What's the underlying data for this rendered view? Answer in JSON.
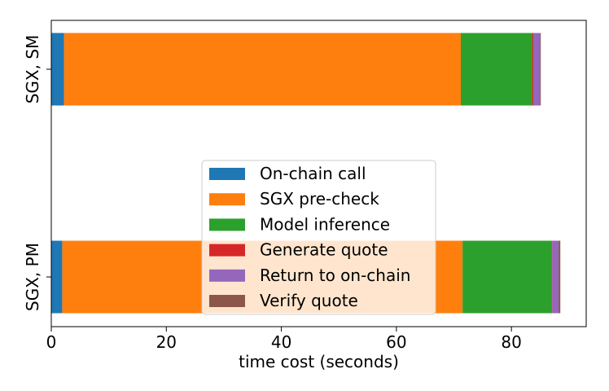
{
  "chart_data": {
    "type": "bar",
    "orientation": "horizontal",
    "stacked": true,
    "categories": [
      "SGX, PM",
      "SGX, SM"
    ],
    "series": [
      {
        "name": "On-chain call",
        "values": [
          1.9,
          2.2
        ],
        "color": "#1f77b4"
      },
      {
        "name": "SGX pre-check",
        "values": [
          69.6,
          69.0
        ],
        "color": "#ff7f0e"
      },
      {
        "name": "Model inference",
        "values": [
          15.5,
          12.4
        ],
        "color": "#2ca02c"
      },
      {
        "name": "Generate quote",
        "values": [
          0.1,
          0.2
        ],
        "color": "#d62728"
      },
      {
        "name": "Return to on-chain",
        "values": [
          1.1,
          1.2
        ],
        "color": "#9467bd"
      },
      {
        "name": "Verify quote",
        "values": [
          0.3,
          0.1
        ],
        "color": "#8c564b"
      }
    ],
    "xlabel": "time cost (seconds)",
    "ylabel": "",
    "xlim": [
      0,
      93
    ],
    "xticks": [
      0,
      20,
      40,
      60,
      80
    ],
    "grid": false,
    "legend_position": "center"
  }
}
